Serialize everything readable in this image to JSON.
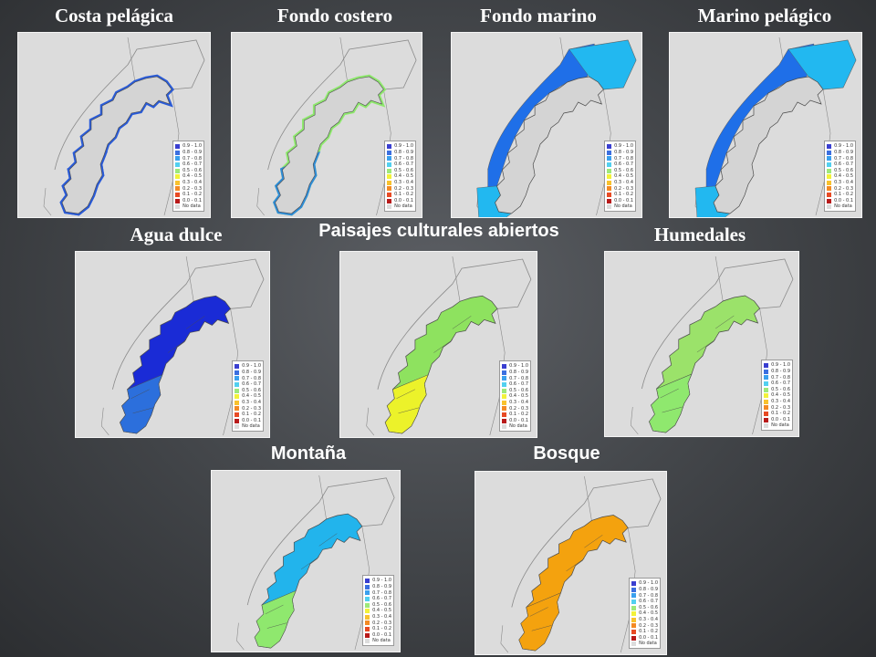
{
  "panels": [
    {
      "title": "Costa pelágica",
      "fill": "#2a5bd7",
      "fill2": "#2a5bd7",
      "mode": "coast"
    },
    {
      "title": "Fondo costero",
      "fill": "#8fe86e",
      "fill2": "#2f8cd8",
      "mode": "coast"
    },
    {
      "title": "Fondo marino",
      "fill": "#1f6fe8",
      "fill2": "#22b8f0",
      "mode": "sea"
    },
    {
      "title": "Marino pelágico",
      "fill": "#1f6fe8",
      "fill2": "#22b8f0",
      "mode": "sea"
    },
    {
      "title": "Agua dulce",
      "fill": "#1a2bd6",
      "fill2": "#2c6fdc",
      "mode": "land"
    },
    {
      "title": "Paisajes culturales abiertos",
      "fill": "#8ee25f",
      "fill2": "#ecf22a",
      "mode": "land"
    },
    {
      "title": "Humedales",
      "fill": "#9be26a",
      "fill2": "#8fe86e",
      "mode": "land"
    },
    {
      "title": "Montaña",
      "fill": "#22b4ec",
      "fill2": "#8fe86e",
      "mode": "land"
    },
    {
      "title": "Bosque",
      "fill": "#f4a20e",
      "fill2": "#f4a20e",
      "mode": "land"
    }
  ],
  "legend": {
    "entries": [
      {
        "label": "0.9 - 1.0",
        "color": "#3a3fd0"
      },
      {
        "label": "0.8 - 0.9",
        "color": "#3b6fe0"
      },
      {
        "label": "0.7 - 0.8",
        "color": "#3aa0ee"
      },
      {
        "label": "0.6 - 0.7",
        "color": "#52d0f0"
      },
      {
        "label": "0.5 - 0.6",
        "color": "#9ee87a"
      },
      {
        "label": "0.4 - 0.5",
        "color": "#f2f23a"
      },
      {
        "label": "0.3 - 0.4",
        "color": "#f8c22e"
      },
      {
        "label": "0.2 - 0.3",
        "color": "#f48a24"
      },
      {
        "label": "0.1 - 0.2",
        "color": "#e84a24"
      },
      {
        "label": "0.0 - 0.1",
        "color": "#b81a1a"
      },
      {
        "label": "No data",
        "color": "#dcdcdc"
      }
    ]
  }
}
